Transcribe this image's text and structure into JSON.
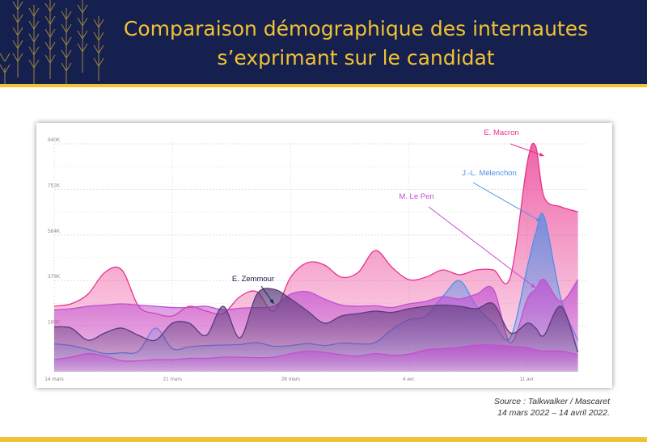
{
  "header": {
    "title_line1": "Comparaison démographique des internautes",
    "title_line2": "s’exprimant sur le candidat"
  },
  "colors": {
    "banner_bg": "#16204f",
    "accent_gold": "#f1c232",
    "macron": "#e9318c",
    "melenchon": "#4f8fe8",
    "lepen": "#c14fd1",
    "zemmour": "#5a3a7a"
  },
  "chart_data": {
    "type": "area",
    "xlim": [
      0,
      31.5
    ],
    "ylim": [
      0,
      940000
    ],
    "y_ticks": [
      188000,
      376000,
      564000,
      752000,
      940000
    ],
    "y_tick_labels": [
      "188K",
      "376K",
      "564K",
      "752K",
      "940K"
    ],
    "x_ticks": [
      0,
      7,
      14,
      21,
      28
    ],
    "x_tick_labels": [
      "14 mars",
      "21 mars",
      "28 mars",
      "4 avr.",
      "11 avr."
    ],
    "x": [
      0,
      1,
      2,
      3,
      4,
      5,
      6,
      7,
      8,
      9,
      10,
      11,
      12,
      13,
      14,
      15,
      16,
      17,
      18,
      19,
      20,
      21,
      22,
      23,
      24,
      25,
      26,
      27,
      28,
      28.5,
      29,
      30,
      31
    ],
    "grid": true,
    "legend": "none",
    "series": [
      {
        "name": "E. Macron",
        "color": "#e9318c",
        "values": [
          270000,
          280000,
          320000,
          410000,
          420000,
          270000,
          240000,
          230000,
          270000,
          250000,
          240000,
          310000,
          330000,
          250000,
          390000,
          450000,
          440000,
          390000,
          410000,
          500000,
          430000,
          380000,
          390000,
          420000,
          400000,
          420000,
          420000,
          390000,
          860000,
          930000,
          720000,
          680000,
          660000
        ]
      },
      {
        "name": "J.-L. Mélenchon",
        "color": "#4f8fe8",
        "values": [
          115000,
          108000,
          92000,
          75000,
          78000,
          85000,
          180000,
          95000,
          103000,
          108000,
          110000,
          112000,
          120000,
          105000,
          108000,
          116000,
          108000,
          118000,
          115000,
          120000,
          175000,
          215000,
          230000,
          310000,
          375000,
          270000,
          200000,
          140000,
          430000,
          570000,
          640000,
          300000,
          130000
        ]
      },
      {
        "name": "M. Le Pen",
        "color": "#c14fd1",
        "values": [
          255000,
          260000,
          270000,
          275000,
          280000,
          275000,
          270000,
          265000,
          265000,
          270000,
          255000,
          262000,
          265000,
          270000,
          320000,
          330000,
          300000,
          275000,
          270000,
          272000,
          265000,
          280000,
          290000,
          310000,
          300000,
          320000,
          340000,
          120000,
          300000,
          340000,
          380000,
          290000,
          380000
        ]
      },
      {
        "name": "E. Zemmour",
        "color": "#5a3a7a",
        "values": [
          185000,
          180000,
          130000,
          160000,
          180000,
          150000,
          130000,
          200000,
          200000,
          150000,
          270000,
          140000,
          320000,
          340000,
          300000,
          250000,
          200000,
          230000,
          240000,
          250000,
          245000,
          260000,
          270000,
          275000,
          270000,
          260000,
          280000,
          160000,
          200000,
          180000,
          150000,
          270000,
          80000
        ]
      },
      {
        "name": "",
        "color": "#c14fd1",
        "values": [
          50000,
          60000,
          75000,
          65000,
          45000,
          45000,
          50000,
          50000,
          55000,
          55000,
          60000,
          60000,
          58000,
          60000,
          75000,
          85000,
          80000,
          70000,
          65000,
          75000,
          68000,
          72000,
          90000,
          95000,
          100000,
          110000,
          110000,
          105000,
          100000,
          90000,
          85000,
          85000,
          70000
        ]
      }
    ],
    "annotations": [
      {
        "text": "E. Macron",
        "target_x": 29.0,
        "target_y": 890000
      },
      {
        "text": "J.-L. Mélenchon",
        "target_x": 28.8,
        "target_y": 620000
      },
      {
        "text": "M. Le Pen",
        "target_x": 28.5,
        "target_y": 345000
      },
      {
        "text": "E. Zemmour",
        "target_x": 13.0,
        "target_y": 280000
      }
    ]
  },
  "footer": {
    "source_line1": "Source : Talkwalker / Mascaret",
    "source_line2": "14 mars 2022 – 14 avril 2022."
  }
}
